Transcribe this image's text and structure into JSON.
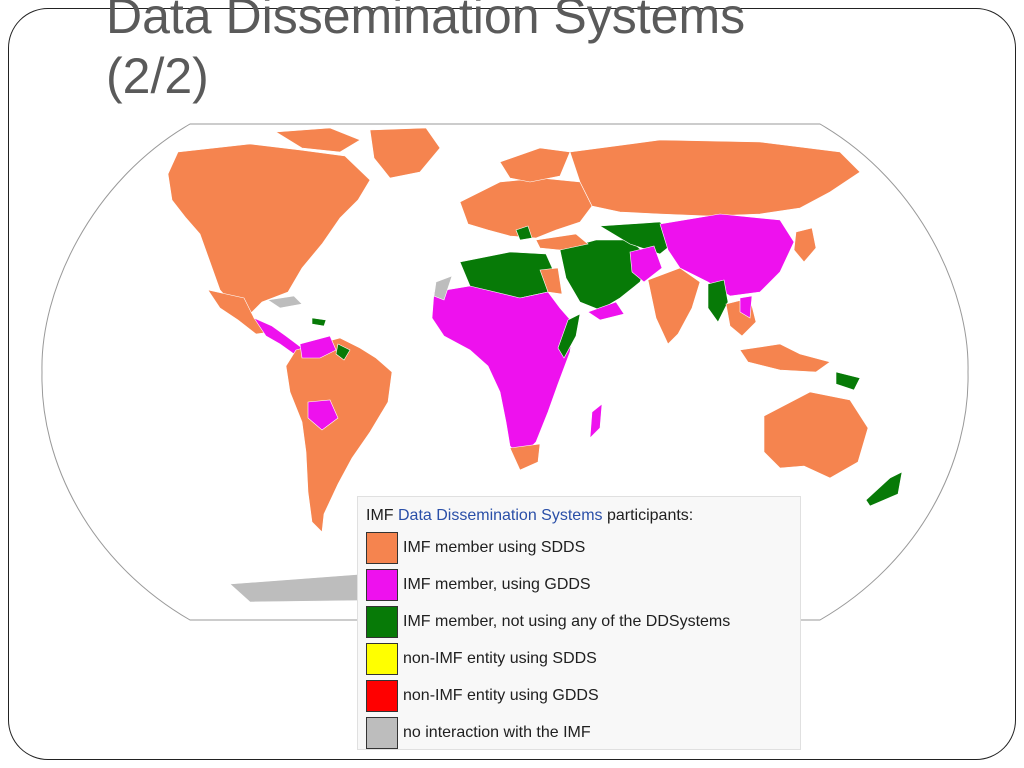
{
  "slide": {
    "title_line1": "Data Dissemination Systems",
    "title_line2": "(2/2)"
  },
  "map": {
    "colors": {
      "ocean": "#ffffff",
      "sdds": "#f5844f",
      "gdds": "#ee11ee",
      "none": "#077a07",
      "non_imf_sdds": "#ffff00",
      "non_imf_gdds": "#ff0000",
      "no_interaction": "#bdbdbd"
    }
  },
  "legend": {
    "prefix": "IMF",
    "link_text": "Data Dissemination Systems",
    "suffix": "participants:",
    "items": [
      {
        "label": "IMF member using SDDS",
        "color": "#f5844f"
      },
      {
        "label": "IMF member, using GDDS",
        "color": "#ee11ee"
      },
      {
        "label": "IMF member, not using any of the DDSystems",
        "color": "#077a07"
      },
      {
        "label": "non-IMF entity using SDDS",
        "color": "#ffff00"
      },
      {
        "label": "non-IMF entity using GDDS",
        "color": "#ff0000"
      },
      {
        "label": "no interaction with the IMF",
        "color": "#bdbdbd"
      }
    ]
  }
}
